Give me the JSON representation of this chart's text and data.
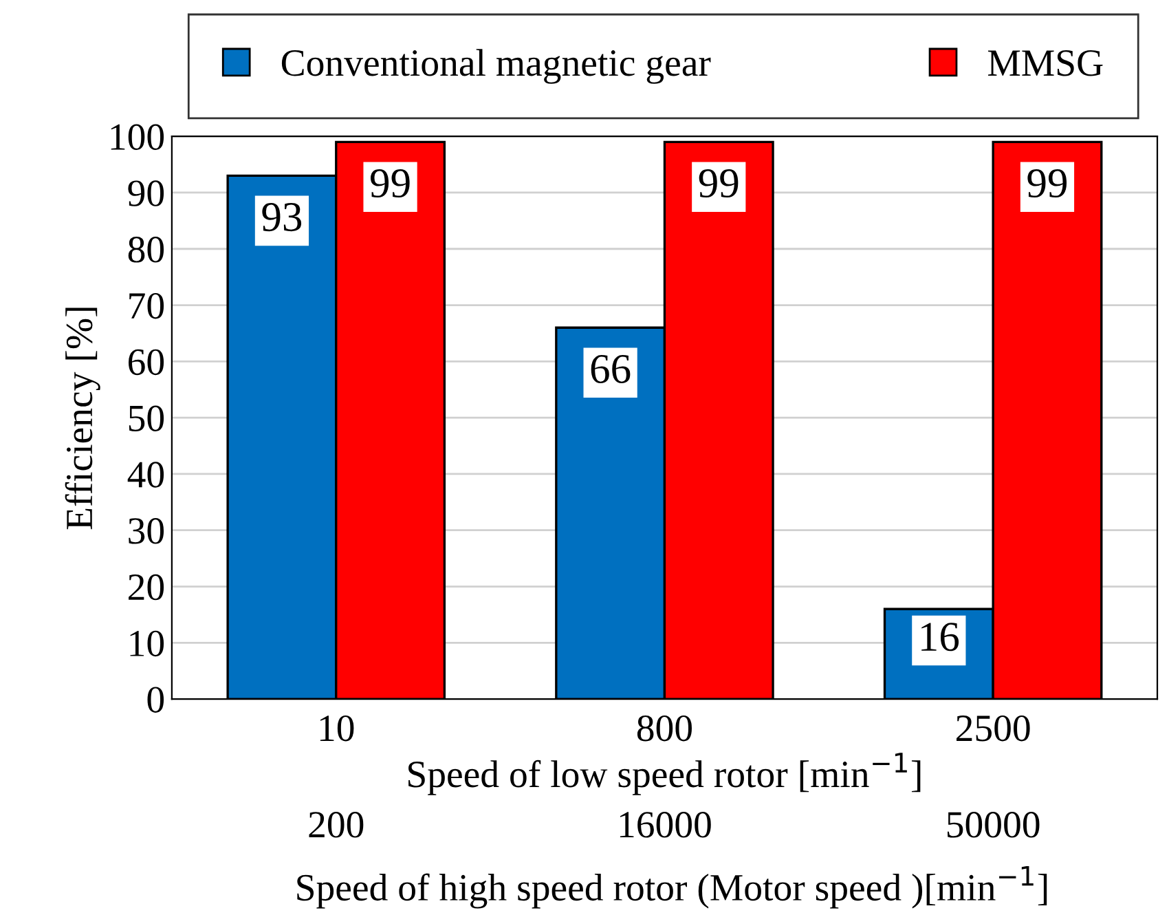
{
  "chart_data": {
    "type": "bar",
    "categories": [
      "10",
      "800",
      "2500"
    ],
    "series": [
      {
        "name": "Conventional magnetic gear",
        "color": "#0070c0",
        "values": [
          93,
          66,
          16
        ]
      },
      {
        "name": "MMSG",
        "color": "#ff0000",
        "values": [
          99,
          99,
          99
        ]
      }
    ],
    "ylabel": "Efficiency [%]",
    "xlabel": "Speed of low speed rotor [min$^{−1}$]",
    "annotations": [
      "200",
      "16000",
      "50000",
      "Speed of high speed rotor (Motor speed )[min$^{−1}$]"
    ],
    "ylim": [
      0,
      100
    ],
    "yticks": [
      0,
      10,
      20,
      30,
      40,
      50,
      60,
      70,
      80,
      90,
      100
    ],
    "grid": "y",
    "legend": "top",
    "data_labels": true
  }
}
